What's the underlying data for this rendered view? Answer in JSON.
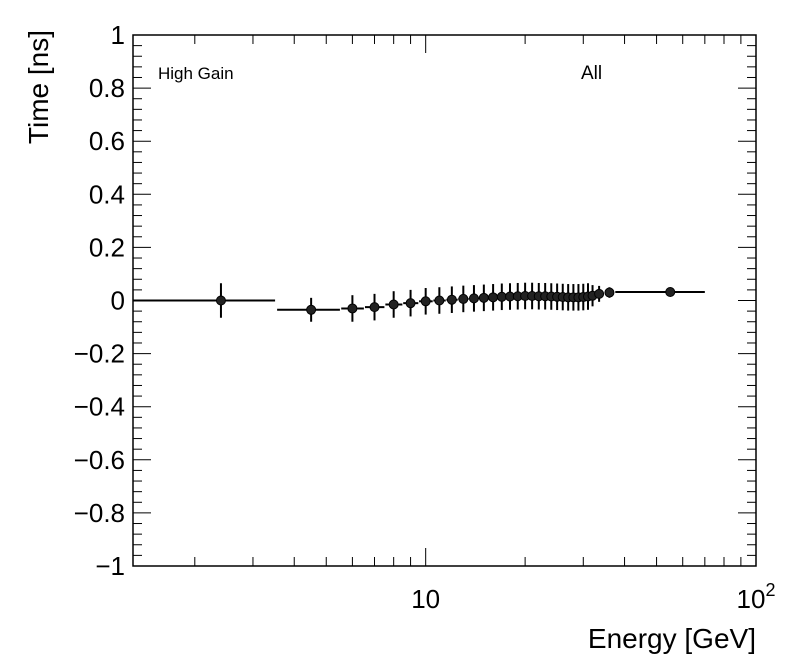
{
  "chart_data": {
    "type": "scatter",
    "xlabel": "Energy [GeV]",
    "ylabel": "Time [ns]",
    "x_scale": "log",
    "xlim": [
      1.3,
      100
    ],
    "ylim": [
      -1,
      1
    ],
    "grid": false,
    "x_tick_labels": [
      {
        "value": 10,
        "base": "10",
        "exponent": ""
      },
      {
        "value": 100,
        "base": "10",
        "exponent": "2"
      }
    ],
    "y_tick_labels": [
      {
        "value": 1,
        "label": "1"
      },
      {
        "value": 0.8,
        "label": "0.8"
      },
      {
        "value": 0.6,
        "label": "0.6"
      },
      {
        "value": 0.4,
        "label": "0.4"
      },
      {
        "value": 0.2,
        "label": "0.2"
      },
      {
        "value": 0,
        "label": "0"
      },
      {
        "value": -0.2,
        "label": "−0.2"
      },
      {
        "value": -0.4,
        "label": "−0.4"
      },
      {
        "value": -0.6,
        "label": "−0.6"
      },
      {
        "value": -0.8,
        "label": "−0.8"
      },
      {
        "value": -1,
        "label": "−1"
      }
    ],
    "annotations": {
      "left": "High Gain",
      "right": "All"
    },
    "points": [
      {
        "x": 2.4,
        "y": 0.0,
        "xlo": 1.3,
        "xhi": 3.5,
        "yerr": 0.065
      },
      {
        "x": 4.5,
        "y": -0.035,
        "xlo": 3.55,
        "xhi": 5.5,
        "yerr": 0.045
      },
      {
        "x": 6.0,
        "y": -0.03,
        "xlo": 5.55,
        "xhi": 6.5,
        "yerr": 0.05
      },
      {
        "x": 7.0,
        "y": -0.025,
        "xlo": 6.55,
        "xhi": 7.5,
        "yerr": 0.05
      },
      {
        "x": 8.0,
        "y": -0.015,
        "xlo": 7.55,
        "xhi": 8.5,
        "yerr": 0.05
      },
      {
        "x": 9.0,
        "y": -0.01,
        "xlo": 8.55,
        "xhi": 9.5,
        "yerr": 0.05
      },
      {
        "x": 10.0,
        "y": -0.003,
        "xlo": 9.55,
        "xhi": 10.5,
        "yerr": 0.05
      },
      {
        "x": 11.0,
        "y": 0.0,
        "xlo": 10.55,
        "xhi": 11.5,
        "yerr": 0.05
      },
      {
        "x": 12.0,
        "y": 0.003,
        "xlo": 11.55,
        "xhi": 12.5,
        "yerr": 0.05
      },
      {
        "x": 13.0,
        "y": 0.006,
        "xlo": 12.55,
        "xhi": 13.5,
        "yerr": 0.05
      },
      {
        "x": 14.0,
        "y": 0.008,
        "xlo": 13.55,
        "xhi": 14.5,
        "yerr": 0.05
      },
      {
        "x": 15.0,
        "y": 0.01,
        "xlo": 14.55,
        "xhi": 15.5,
        "yerr": 0.05
      },
      {
        "x": 16.0,
        "y": 0.012,
        "xlo": 15.55,
        "xhi": 16.5,
        "yerr": 0.05
      },
      {
        "x": 17.0,
        "y": 0.014,
        "xlo": 16.55,
        "xhi": 17.5,
        "yerr": 0.05
      },
      {
        "x": 18.0,
        "y": 0.015,
        "xlo": 17.55,
        "xhi": 18.5,
        "yerr": 0.05
      },
      {
        "x": 19.0,
        "y": 0.016,
        "xlo": 18.55,
        "xhi": 19.5,
        "yerr": 0.05
      },
      {
        "x": 20.0,
        "y": 0.017,
        "xlo": 19.55,
        "xhi": 20.5,
        "yerr": 0.05
      },
      {
        "x": 21.0,
        "y": 0.017,
        "xlo": 20.55,
        "xhi": 21.5,
        "yerr": 0.05
      },
      {
        "x": 22.0,
        "y": 0.016,
        "xlo": 21.55,
        "xhi": 22.5,
        "yerr": 0.05
      },
      {
        "x": 23.0,
        "y": 0.016,
        "xlo": 22.55,
        "xhi": 23.5,
        "yerr": 0.05
      },
      {
        "x": 24.0,
        "y": 0.015,
        "xlo": 23.55,
        "xhi": 24.5,
        "yerr": 0.05
      },
      {
        "x": 25.0,
        "y": 0.014,
        "xlo": 24.55,
        "xhi": 25.5,
        "yerr": 0.05
      },
      {
        "x": 26.0,
        "y": 0.013,
        "xlo": 25.55,
        "xhi": 26.5,
        "yerr": 0.05
      },
      {
        "x": 27.0,
        "y": 0.012,
        "xlo": 26.55,
        "xhi": 27.5,
        "yerr": 0.05
      },
      {
        "x": 28.0,
        "y": 0.012,
        "xlo": 27.55,
        "xhi": 28.5,
        "yerr": 0.05
      },
      {
        "x": 29.0,
        "y": 0.012,
        "xlo": 28.55,
        "xhi": 29.5,
        "yerr": 0.05
      },
      {
        "x": 30.0,
        "y": 0.013,
        "xlo": 29.55,
        "xhi": 30.5,
        "yerr": 0.05
      },
      {
        "x": 31.0,
        "y": 0.015,
        "xlo": 30.55,
        "xhi": 31.5,
        "yerr": 0.05
      },
      {
        "x": 32.0,
        "y": 0.018,
        "xlo": 31.55,
        "xhi": 32.5,
        "yerr": 0.04
      },
      {
        "x": 33.5,
        "y": 0.025,
        "xlo": 32.6,
        "xhi": 34.5,
        "yerr": 0.03
      },
      {
        "x": 36.0,
        "y": 0.03,
        "xlo": 35.0,
        "xhi": 37.0,
        "yerr": 0.02
      },
      {
        "x": 55.0,
        "y": 0.032,
        "xlo": 37.5,
        "xhi": 70.0,
        "yerr": 0.012
      }
    ]
  }
}
